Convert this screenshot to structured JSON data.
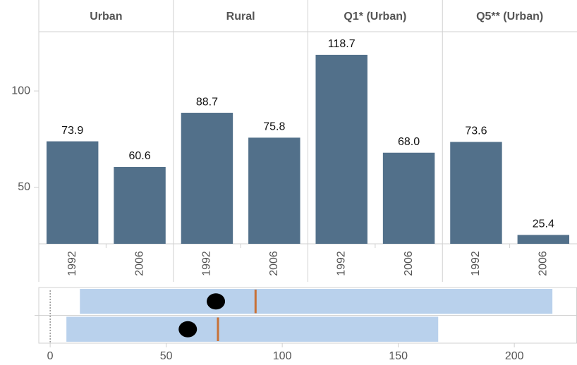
{
  "chart_data": [
    {
      "type": "bar",
      "color": "#52708a",
      "ylim": [
        20.8,
        130.7
      ],
      "yticks": [
        50,
        100
      ],
      "facets": [
        {
          "title": "Urban",
          "categories": [
            "1992",
            "2006"
          ],
          "values": [
            73.9,
            60.6
          ],
          "value_labels": [
            "73.9",
            "60.6"
          ]
        },
        {
          "title": "Rural",
          "categories": [
            "1992",
            "2006"
          ],
          "values": [
            88.7,
            75.8
          ],
          "value_labels": [
            "88.7",
            "75.8"
          ]
        },
        {
          "title": "Q1* (Urban)",
          "categories": [
            "1992",
            "2006"
          ],
          "values": [
            118.7,
            68.0
          ],
          "value_labels": [
            "118.7",
            "68.0"
          ]
        },
        {
          "title": "Q5** (Urban)",
          "categories": [
            "1992",
            "2006"
          ],
          "values": [
            73.6,
            25.4
          ],
          "value_labels": [
            "73.6",
            "25.4"
          ]
        }
      ]
    },
    {
      "type": "range",
      "range_color": "#b9d1ec",
      "line_color": "#c87137",
      "dot_color": "#000000",
      "xlim": [
        -4.9,
        227
      ],
      "xticks": [
        0,
        50,
        100,
        150,
        200
      ],
      "reference_line": 0,
      "rows": [
        {
          "low": 12.8,
          "high": 216.4,
          "line": 88.5,
          "dot": 71.4
        },
        {
          "low": 7.0,
          "high": 167.2,
          "line": 72.3,
          "dot": 59.3
        }
      ]
    }
  ]
}
